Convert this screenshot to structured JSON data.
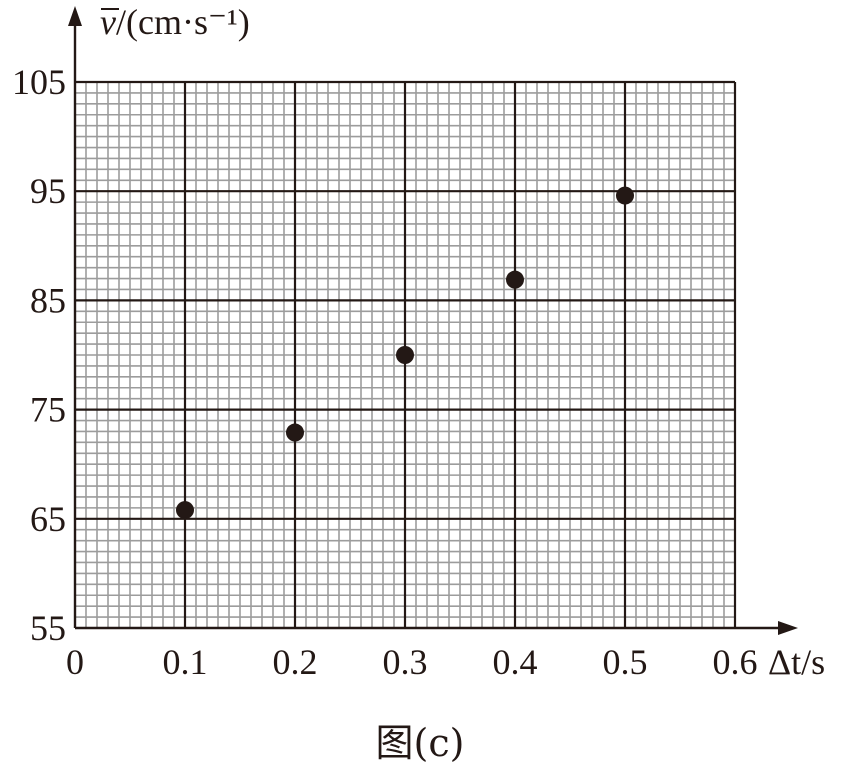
{
  "chart_data": {
    "type": "scatter",
    "title": "",
    "caption": "图(c)",
    "xlabel": "Δt/s",
    "ylabel_symbol": "v",
    "ylabel_unit": "/(cm·s⁻¹)",
    "xlim": [
      0,
      0.6
    ],
    "ylim": [
      55,
      105
    ],
    "x_ticks": [
      "0",
      "0.1",
      "0.2",
      "0.3",
      "0.4",
      "0.5",
      "0.6"
    ],
    "y_ticks": [
      "55",
      "65",
      "75",
      "85",
      "95",
      "105"
    ],
    "grid": true,
    "points": [
      {
        "x": 0.1,
        "y": 65.8
      },
      {
        "x": 0.2,
        "y": 72.9
      },
      {
        "x": 0.3,
        "y": 80.0
      },
      {
        "x": 0.4,
        "y": 86.9
      },
      {
        "x": 0.5,
        "y": 94.6
      }
    ],
    "colors": {
      "major_grid": "#231815",
      "minor_grid": "#9c9c9c",
      "marker": "#231815"
    }
  }
}
